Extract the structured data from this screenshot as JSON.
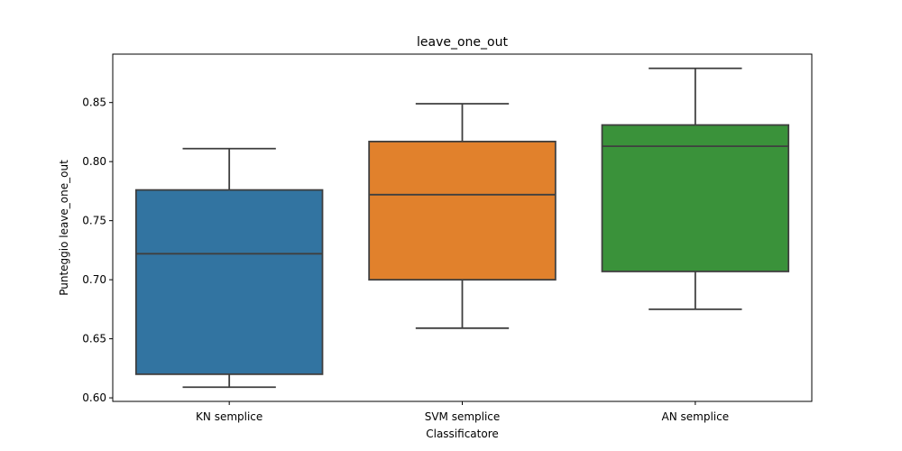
{
  "chart_data": {
    "type": "box",
    "title": "leave_one_out",
    "xlabel": "Classificatore",
    "ylabel": "Punteggio leave_one_out",
    "ylim": [
      0.597,
      0.891
    ],
    "yticks": [
      0.6,
      0.65,
      0.7,
      0.75,
      0.8,
      0.85
    ],
    "ytick_labels": [
      "0.60",
      "0.65",
      "0.70",
      "0.75",
      "0.80",
      "0.85"
    ],
    "categories": [
      "KN semplice",
      "SVM semplice",
      "AN semplice"
    ],
    "boxes": [
      {
        "category": "KN semplice",
        "whisker_low": 0.609,
        "q1": 0.62,
        "median": 0.722,
        "q3": 0.776,
        "whisker_high": 0.811,
        "color": "#3274a1"
      },
      {
        "category": "SVM semplice",
        "whisker_low": 0.659,
        "q1": 0.7,
        "median": 0.772,
        "q3": 0.817,
        "whisker_high": 0.849,
        "color": "#e1812c"
      },
      {
        "category": "AN semplice",
        "whisker_low": 0.675,
        "q1": 0.707,
        "median": 0.813,
        "q3": 0.831,
        "whisker_high": 0.879,
        "color": "#3a923a"
      }
    ],
    "line_color": "#3f3f3f",
    "grid": false,
    "legend": false
  }
}
